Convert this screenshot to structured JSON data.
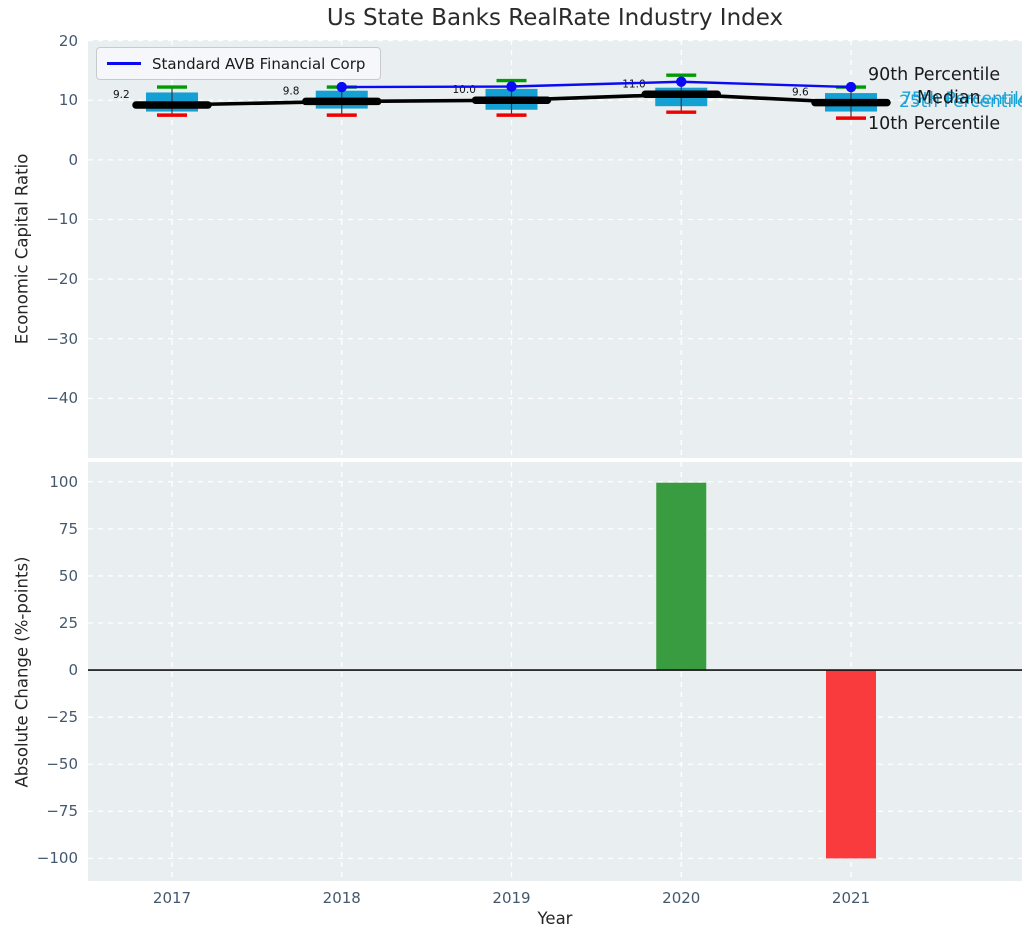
{
  "title": "Us State Banks RealRate Industry Index",
  "legend": {
    "label": "Standard AVB Financial Corp"
  },
  "axis_labels": {
    "top_y": "Economic Capital Ratio",
    "bottom_y": "Absolute Change (%-points)",
    "x": "Year"
  },
  "percentile_labels": {
    "p90": "90th Percentile",
    "p75": "75th Percentile",
    "p25": "25th Percentile",
    "median": "Median",
    "p10": "10th Percentile"
  },
  "colors": {
    "figure_bg": "#ffffff",
    "axes_bg": "#e9eef0",
    "grid": "#ffffff",
    "box_fill": "#14a0d3",
    "whisker_cap_high": "#009b00",
    "whisker_cap_low": "#f10000",
    "whisker_line": "#3a3a3a",
    "median_line": "#000000",
    "company_line": "#0a0af5",
    "bar_positive": "#3a9c40",
    "bar_negative": "#fa3b3e",
    "zero_line": "#111111",
    "tick_text": "#44586e",
    "label_text": "#262626",
    "cyan_text": "#1aa3d6",
    "annotation_text": "#111111"
  },
  "chart_data": [
    {
      "type": "box",
      "title": "Us State Banks RealRate Industry Index",
      "ylabel": "Economic Capital Ratio",
      "ylim": [
        -50,
        20.1
      ],
      "yticks": [
        20,
        10,
        0,
        -10,
        -20,
        -30,
        -40
      ],
      "categories": [
        "2017",
        "2018",
        "2019",
        "2020",
        "2021"
      ],
      "grid": true,
      "legend_position": "upper left",
      "box_stats": {
        "whisker_high_90th": [
          12.2,
          12.2,
          13.3,
          14.2,
          12.2
        ],
        "q3_75th": [
          11.3,
          11.6,
          11.9,
          12.1,
          11.2
        ],
        "median": [
          9.2,
          9.8,
          10.0,
          11.0,
          9.6
        ],
        "q1_25th": [
          8.1,
          8.6,
          8.4,
          9.0,
          8.1
        ],
        "whisker_low_10th": [
          7.5,
          7.5,
          7.5,
          8.0,
          7.0
        ]
      },
      "median_annotations": [
        "9.2",
        "9.8",
        "10.0",
        "11.0",
        "9.6"
      ],
      "series": [
        {
          "name": "Standard AVB Financial Corp",
          "type": "line",
          "x": [
            "2018",
            "2019",
            "2020",
            "2021"
          ],
          "values": [
            12.2,
            12.3,
            13.1,
            12.2
          ]
        }
      ]
    },
    {
      "type": "bar",
      "ylabel": "Absolute Change (%-points)",
      "xlabel": "Year",
      "ylim": [
        -112,
        110.5
      ],
      "yticks": [
        100,
        75,
        50,
        25,
        0,
        -25,
        -50,
        -75,
        -100
      ],
      "categories": [
        "2017",
        "2018",
        "2019",
        "2020",
        "2021"
      ],
      "values": [
        null,
        null,
        null,
        99.5,
        -100
      ],
      "grid": true
    }
  ]
}
